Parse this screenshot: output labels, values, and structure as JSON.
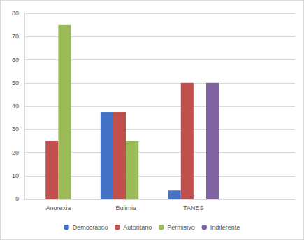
{
  "chart_data": {
    "type": "bar",
    "categories": [
      "Anorexia",
      "Bulimia",
      "TANES",
      null
    ],
    "series": [
      {
        "name": "Democratico",
        "color": "#4472c4",
        "values": [
          0,
          37.5,
          3.5,
          null
        ]
      },
      {
        "name": "Autoritario",
        "color": "#c0504d",
        "values": [
          25,
          37.5,
          50,
          null
        ]
      },
      {
        "name": "Permisivo",
        "color": "#9bbb59",
        "values": [
          75,
          25,
          0,
          null
        ]
      },
      {
        "name": "Indiferente",
        "color": "#8064a2",
        "values": [
          0,
          0,
          50,
          null
        ]
      }
    ],
    "ylim": [
      0,
      80
    ],
    "yticks": [
      0,
      10,
      20,
      30,
      40,
      50,
      60,
      70,
      80
    ],
    "grid": true,
    "legend": "bottom"
  }
}
